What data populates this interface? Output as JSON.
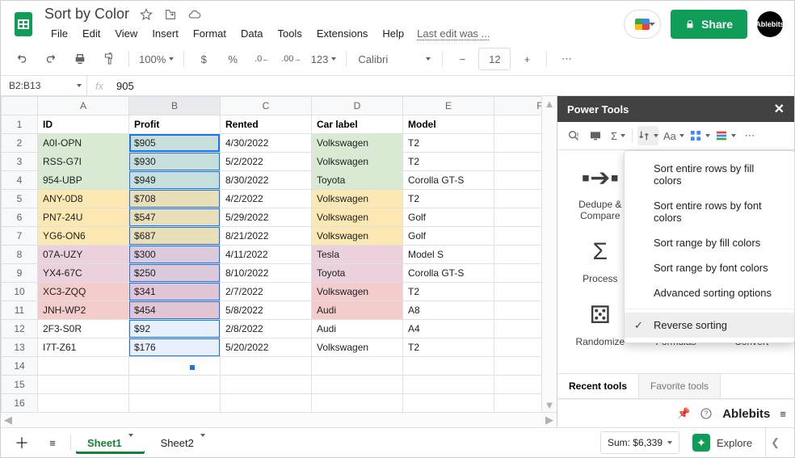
{
  "doc": {
    "title": "Sort by Color",
    "last_edit": "Last edit was ..."
  },
  "menus": [
    "File",
    "Edit",
    "View",
    "Insert",
    "Format",
    "Data",
    "Tools",
    "Extensions",
    "Help"
  ],
  "share": {
    "label": "Share"
  },
  "avatar": "Ablebits",
  "toolbar": {
    "zoom": "100%",
    "font": "Calibri",
    "font_size": "12",
    "currency": "$",
    "percent": "%",
    "dec_dec": ".0←",
    "dec_inc": ".00→",
    "num_fmt": "123"
  },
  "name_box": "B2:B13",
  "formula_value": "905",
  "columns": [
    "A",
    "B",
    "C",
    "D",
    "E",
    "F"
  ],
  "headers": [
    "ID",
    "Profit",
    "Rented",
    "Car label",
    "Model"
  ],
  "rows": [
    {
      "n": 1,
      "id": "",
      "p": "",
      "r": "",
      "c": "",
      "m": "",
      "fill": ""
    },
    {
      "n": 2,
      "id": "A0I-OPN",
      "p": "$905",
      "r": "4/30/2022",
      "c": "Volkswagen",
      "m": "T2",
      "fill": "green",
      "active": true
    },
    {
      "n": 3,
      "id": "RSS-G7I",
      "p": "$930",
      "r": "5/2/2022",
      "c": "Volkswagen",
      "m": "T2",
      "fill": "green"
    },
    {
      "n": 4,
      "id": "954-UBP",
      "p": "$949",
      "r": "8/30/2022",
      "c": "Toyota",
      "m": "Corolla GT-S",
      "fill": "green"
    },
    {
      "n": 5,
      "id": "ANY-0D8",
      "p": "$708",
      "r": "4/2/2022",
      "c": "Volkswagen",
      "m": "T2",
      "fill": "yellow"
    },
    {
      "n": 6,
      "id": "PN7-24U",
      "p": "$547",
      "r": "5/29/2022",
      "c": "Volkswagen",
      "m": "Golf",
      "fill": "yellow"
    },
    {
      "n": 7,
      "id": "YG6-ON6",
      "p": "$687",
      "r": "8/21/2022",
      "c": "Volkswagen",
      "m": "Golf",
      "fill": "yellow"
    },
    {
      "n": 8,
      "id": "07A-UZY",
      "p": "$300",
      "r": "4/11/2022",
      "c": "Tesla",
      "m": "Model S",
      "fill": "pink"
    },
    {
      "n": 9,
      "id": "YX4-67C",
      "p": "$250",
      "r": "8/10/2022",
      "c": "Toyota",
      "m": "Corolla GT-S",
      "fill": "pink"
    },
    {
      "n": 10,
      "id": "XC3-ZQQ",
      "p": "$341",
      "r": "2/7/2022",
      "c": "Volkswagen",
      "m": "T2",
      "fill": "red"
    },
    {
      "n": 11,
      "id": "JNH-WP2",
      "p": "$454",
      "r": "5/8/2022",
      "c": "Audi",
      "m": "A8",
      "fill": "red"
    },
    {
      "n": 12,
      "id": "2F3-S0R",
      "p": "$92",
      "r": "2/8/2022",
      "c": "Audi",
      "m": "A4",
      "fill": ""
    },
    {
      "n": 13,
      "id": "I7T-Z61",
      "p": "$176",
      "r": "5/20/2022",
      "c": "Volkswagen",
      "m": "T2",
      "fill": ""
    },
    {
      "n": 14,
      "id": "",
      "p": "",
      "r": "",
      "c": "",
      "m": "",
      "fill": ""
    },
    {
      "n": 15,
      "id": "",
      "p": "",
      "r": "",
      "c": "",
      "m": "",
      "fill": ""
    },
    {
      "n": 16,
      "id": "",
      "p": "",
      "r": "",
      "c": "",
      "m": "",
      "fill": ""
    }
  ],
  "colors": {
    "green": "#d9ead3",
    "yellow": "#fce8b2",
    "pink": "#ead1dc",
    "red": "#f4cccc",
    "accent": "#1a73e8",
    "brand": "#0f9d58"
  },
  "panel": {
    "title": "Power Tools",
    "items": [
      {
        "label": "Dedupe &\nCompare",
        "glyph": "▪➔▪"
      },
      {
        "label": "",
        "glyph": ""
      },
      {
        "label": "",
        "glyph": ""
      },
      {
        "label": "Process",
        "glyph": "Σ"
      },
      {
        "label": "",
        "glyph": ""
      },
      {
        "label": "",
        "glyph": ""
      },
      {
        "label": "Randomize",
        "glyph": "⚄"
      },
      {
        "label": "Formulas",
        "glyph": "ƒx"
      },
      {
        "label": "Convert",
        "glyph": "↻"
      }
    ],
    "tabs": [
      "Recent tools",
      "Favorite tools"
    ],
    "brand": "Ablebits"
  },
  "dropdown": {
    "items": [
      "Sort entire rows by fill colors",
      "Sort entire rows by font colors",
      "Sort range by fill colors",
      "Sort range by font colors",
      "Advanced sorting options"
    ],
    "highlight": "Reverse sorting"
  },
  "sheets": [
    "Sheet1",
    "Sheet2"
  ],
  "status": {
    "sum": "Sum: $6,339",
    "explore": "Explore"
  }
}
